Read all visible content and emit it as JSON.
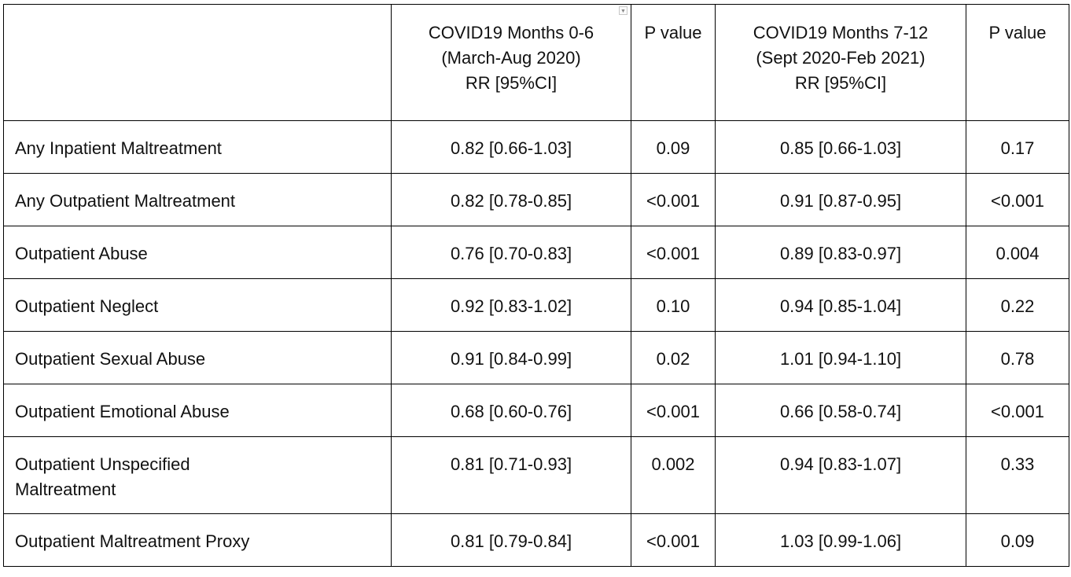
{
  "table": {
    "header": {
      "col0": "",
      "col1_lines": [
        "COVID19 Months 0-6",
        "(March-Aug 2020)",
        "RR [95%CI]"
      ],
      "col2": "P value",
      "col3_lines": [
        "COVID19 Months 7-12",
        "(Sept 2020-Feb 2021)",
        "RR [95%CI]"
      ],
      "col4": "P value"
    },
    "rows": [
      {
        "label": "Any Inpatient Maltreatment",
        "rr1": "0.82 [0.66-1.03]",
        "p1": "0.09",
        "rr2": "0.85 [0.66-1.03]",
        "p2": "0.17"
      },
      {
        "label": "Any Outpatient Maltreatment",
        "rr1": "0.82 [0.78-0.85]",
        "p1": "<0.001",
        "rr2": "0.91 [0.87-0.95]",
        "p2": "<0.001"
      },
      {
        "label": "Outpatient Abuse",
        "rr1": "0.76 [0.70-0.83]",
        "p1": "<0.001",
        "rr2": "0.89 [0.83-0.97]",
        "p2": "0.004"
      },
      {
        "label": "Outpatient Neglect",
        "rr1": "0.92 [0.83-1.02]",
        "p1": "0.10",
        "rr2": "0.94 [0.85-1.04]",
        "p2": "0.22"
      },
      {
        "label": "Outpatient Sexual Abuse",
        "rr1": "0.91 [0.84-0.99]",
        "p1": "0.02",
        "rr2": "1.01 [0.94-1.10]",
        "p2": "0.78"
      },
      {
        "label": "Outpatient Emotional Abuse",
        "rr1": "0.68 [0.60-0.76]",
        "p1": "<0.001",
        "rr2": "0.66 [0.58-0.74]",
        "p2": "<0.001"
      },
      {
        "label_lines": [
          "Outpatient Unspecified",
          "Maltreatment"
        ],
        "rr1": "0.81 [0.71-0.93]",
        "p1": "0.002",
        "rr2": "0.94 [0.83-1.07]",
        "p2": "0.33"
      },
      {
        "label": "Outpatient Maltreatment Proxy",
        "rr1": "0.81 [0.79-0.84]",
        "p1": "<0.001",
        "rr2": "1.03 [0.99-1.06]",
        "p2": "0.09"
      }
    ]
  }
}
